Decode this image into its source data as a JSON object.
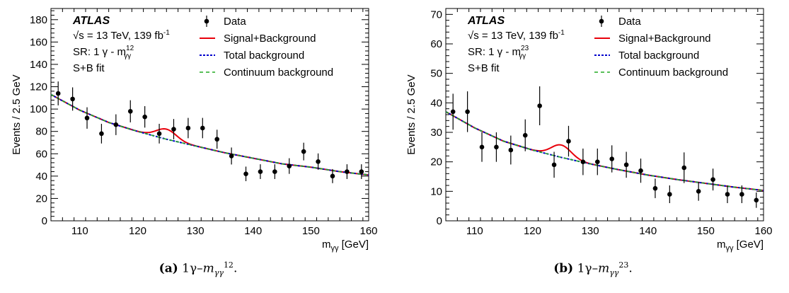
{
  "figures": [
    {
      "caption": {
        "letter": "(a)",
        "prefix": "1γ–",
        "var": "m",
        "sub": "γγ",
        "sup": "12",
        "suffix": "."
      },
      "annotations": {
        "brand": "ATLAS",
        "energy_prefix": "√s = 13 TeV, 139 fb",
        "energy_sup": "-1",
        "region": "SR: 1 γ - m",
        "region_sub": "γγ",
        "region_sup": "12",
        "fit": "S+B fit"
      }
    },
    {
      "caption": {
        "letter": "(b)",
        "prefix": "1γ–",
        "var": "m",
        "sub": "γγ",
        "sup": "23",
        "suffix": "."
      },
      "annotations": {
        "brand": "ATLAS",
        "energy_prefix": "√s = 13 TeV, 139 fb",
        "energy_sup": "-1",
        "region": "SR: 1 γ - m",
        "region_sub": "γγ",
        "region_sup": "23",
        "fit": "S+B fit"
      }
    }
  ],
  "chart_data": [
    {
      "type": "scatter",
      "title": "",
      "xlabel": "m",
      "xlabel_sub": "γγ",
      "xlabel_unit": " [GeV]",
      "ylabel": "Events / 2.5 GeV",
      "xlim": [
        105,
        160
      ],
      "ylim": [
        0,
        190
      ],
      "xticks": [
        110,
        120,
        130,
        140,
        150,
        160
      ],
      "yticks": [
        0,
        20,
        40,
        60,
        80,
        100,
        120,
        140,
        160,
        180
      ],
      "legend": [
        "Data",
        "Signal+Background",
        "Total background",
        "Continuum background"
      ],
      "legend_position": "top-right",
      "colors": {
        "data": "#000000",
        "signal_background": "#e8000b",
        "total_background": "#0000cc",
        "continuum_background": "#22aa22"
      },
      "data": [
        {
          "x": 106.25,
          "y": 114,
          "err": 10.7
        },
        {
          "x": 108.75,
          "y": 109,
          "err": 10.4
        },
        {
          "x": 111.25,
          "y": 92,
          "err": 9.6
        },
        {
          "x": 113.75,
          "y": 78,
          "err": 8.8
        },
        {
          "x": 116.25,
          "y": 86,
          "err": 9.3
        },
        {
          "x": 118.75,
          "y": 98,
          "err": 9.9
        },
        {
          "x": 121.25,
          "y": 93,
          "err": 9.6
        },
        {
          "x": 123.75,
          "y": 78,
          "err": 8.8
        },
        {
          "x": 126.25,
          "y": 82,
          "err": 9.1
        },
        {
          "x": 128.75,
          "y": 83,
          "err": 9.1
        },
        {
          "x": 131.25,
          "y": 83,
          "err": 9.1
        },
        {
          "x": 133.75,
          "y": 73,
          "err": 8.5
        },
        {
          "x": 136.25,
          "y": 58,
          "err": 7.6
        },
        {
          "x": 138.75,
          "y": 42,
          "err": 6.5
        },
        {
          "x": 141.25,
          "y": 44,
          "err": 6.6
        },
        {
          "x": 143.75,
          "y": 44,
          "err": 6.6
        },
        {
          "x": 146.25,
          "y": 49,
          "err": 7.0
        },
        {
          "x": 148.75,
          "y": 62,
          "err": 7.9
        },
        {
          "x": 151.25,
          "y": 53,
          "err": 7.3
        },
        {
          "x": 153.75,
          "y": 40,
          "err": 6.3
        },
        {
          "x": 156.25,
          "y": 44,
          "err": 6.6
        },
        {
          "x": 158.75,
          "y": 44,
          "err": 6.6
        }
      ],
      "background": {
        "x": [
          105,
          110,
          115,
          120,
          125,
          130,
          135,
          140,
          145,
          150,
          155,
          160
        ],
        "y": [
          113,
          99,
          88,
          80,
          73,
          67,
          61,
          56,
          51,
          48,
          44,
          41
        ]
      },
      "signal": {
        "mass": 125,
        "amplitude": 9,
        "width": 1.7
      }
    },
    {
      "type": "scatter",
      "title": "",
      "xlabel": "m",
      "xlabel_sub": "γγ",
      "xlabel_unit": " [GeV]",
      "ylabel": "Events / 2.5 GeV",
      "xlim": [
        105,
        160
      ],
      "ylim": [
        0,
        72
      ],
      "xticks": [
        110,
        120,
        130,
        140,
        150,
        160
      ],
      "yticks": [
        0,
        10,
        20,
        30,
        40,
        50,
        60,
        70
      ],
      "legend": [
        "Data",
        "Signal+Background",
        "Total background",
        "Continuum background"
      ],
      "legend_position": "top-right",
      "colors": {
        "data": "#000000",
        "signal_background": "#e8000b",
        "total_background": "#0000cc",
        "continuum_background": "#22aa22"
      },
      "data": [
        {
          "x": 106.25,
          "y": 37,
          "err": 6.1
        },
        {
          "x": 108.75,
          "y": 37,
          "err": 6.9
        },
        {
          "x": 111.25,
          "y": 25,
          "err": 5.0
        },
        {
          "x": 113.75,
          "y": 25,
          "err": 5.0
        },
        {
          "x": 116.25,
          "y": 24,
          "err": 4.9
        },
        {
          "x": 118.75,
          "y": 29,
          "err": 5.4
        },
        {
          "x": 121.25,
          "y": 39,
          "err": 6.6
        },
        {
          "x": 123.75,
          "y": 19,
          "err": 4.4
        },
        {
          "x": 126.25,
          "y": 27,
          "err": 5.2
        },
        {
          "x": 128.75,
          "y": 20,
          "err": 4.5
        },
        {
          "x": 131.25,
          "y": 20,
          "err": 4.5
        },
        {
          "x": 133.75,
          "y": 21,
          "err": 4.6
        },
        {
          "x": 136.25,
          "y": 19,
          "err": 4.4
        },
        {
          "x": 138.75,
          "y": 17,
          "err": 4.1
        },
        {
          "x": 141.25,
          "y": 11,
          "err": 3.3
        },
        {
          "x": 143.75,
          "y": 9,
          "err": 3.0
        },
        {
          "x": 146.25,
          "y": 18,
          "err": 5.2
        },
        {
          "x": 148.75,
          "y": 10,
          "err": 3.2
        },
        {
          "x": 151.25,
          "y": 14,
          "err": 3.7
        },
        {
          "x": 153.75,
          "y": 9,
          "err": 3.0
        },
        {
          "x": 156.25,
          "y": 9,
          "err": 3.0
        },
        {
          "x": 158.75,
          "y": 7,
          "err": 2.6
        }
      ],
      "background": {
        "x": [
          105,
          110,
          115,
          120,
          125,
          130,
          135,
          140,
          145,
          150,
          155,
          160
        ],
        "y": [
          37,
          31.5,
          27,
          24,
          21.5,
          19.3,
          17.3,
          15.5,
          14,
          12.7,
          11.4,
          10.3
        ]
      },
      "signal": {
        "mass": 125,
        "amplitude": 4.2,
        "width": 1.7
      }
    }
  ]
}
